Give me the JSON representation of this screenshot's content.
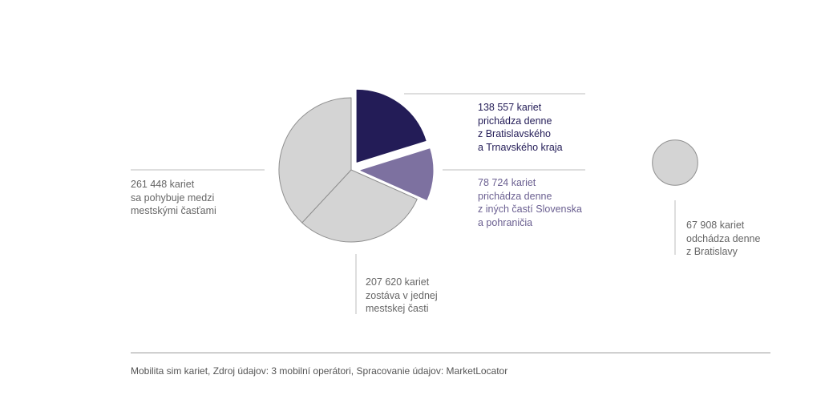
{
  "chart_data": {
    "type": "pie",
    "slices": [
      {
        "value": 138557,
        "color": "#231c57",
        "exploded": true,
        "label": [
          "138 557 kariet",
          "prichádza denne",
          "z Bratislavského",
          "a Trnavského kraja"
        ]
      },
      {
        "value": 78724,
        "color": "#7d71a0",
        "exploded": true,
        "label": [
          "78 724 kariet",
          "prichádza denne",
          "z iných častí Slovenska",
          "a pohraničia"
        ]
      },
      {
        "value": 207620,
        "color": "#d4d4d4",
        "exploded": false,
        "label": [
          "207 620 kariet",
          "zostáva v jednej",
          "mestskej časti"
        ]
      },
      {
        "value": 261448,
        "color": "#d4d4d4",
        "exploded": false,
        "label": [
          "261 448 kariet",
          "sa pohybuje medzi",
          "mestskými časťami"
        ]
      }
    ],
    "separate_circle": {
      "value": 67908,
      "color": "#d4d4d4",
      "label": [
        "67 908 kariet",
        "odchádza denne",
        "z Bratislavy"
      ]
    },
    "outline_color": "#8f8f8f",
    "leader_color": "#bdbdbd"
  },
  "source_note": "Mobilita sim kariet, Zdroj údajov: 3 mobilní operátori, Spracovanie údajov: MarketLocator",
  "text_colors": {
    "dark": "#231c57",
    "purple": "#6b6091",
    "gray": "#666666"
  }
}
